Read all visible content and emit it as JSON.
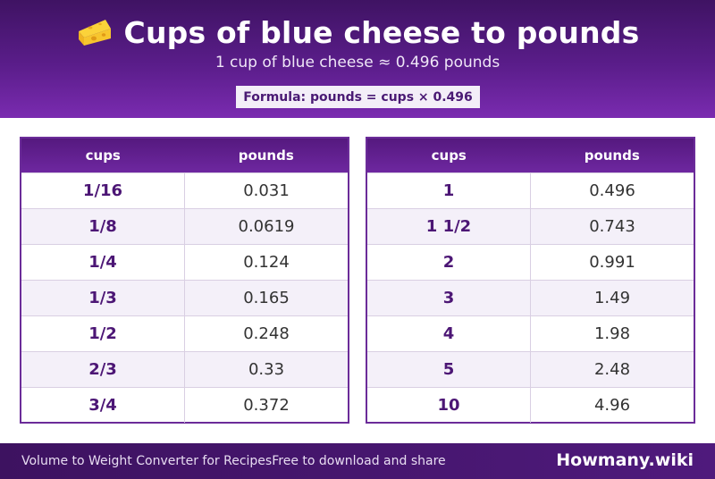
{
  "header": {
    "title": "Cups of blue cheese to pounds",
    "icon": "cheese-icon",
    "subtitle": "1 cup of blue cheese ≈ 0.496 pounds",
    "formula": "Formula: pounds = cups × 0.496"
  },
  "tables": [
    {
      "col1": "cups",
      "col2": "pounds",
      "rows": [
        {
          "cups": "1/16",
          "pounds": "0.031"
        },
        {
          "cups": "1/8",
          "pounds": "0.0619"
        },
        {
          "cups": "1/4",
          "pounds": "0.124"
        },
        {
          "cups": "1/3",
          "pounds": "0.165"
        },
        {
          "cups": "1/2",
          "pounds": "0.248"
        },
        {
          "cups": "2/3",
          "pounds": "0.33"
        },
        {
          "cups": "3/4",
          "pounds": "0.372"
        }
      ]
    },
    {
      "col1": "cups",
      "col2": "pounds",
      "rows": [
        {
          "cups": "1",
          "pounds": "0.496"
        },
        {
          "cups": "1 1/2",
          "pounds": "0.743"
        },
        {
          "cups": "2",
          "pounds": "0.991"
        },
        {
          "cups": "3",
          "pounds": "1.49"
        },
        {
          "cups": "4",
          "pounds": "1.98"
        },
        {
          "cups": "5",
          "pounds": "2.48"
        },
        {
          "cups": "10",
          "pounds": "4.96"
        }
      ]
    }
  ],
  "footer": {
    "left_text": "Volume to Weight Converter for Recipes",
    "left_text2": "Free to download and share",
    "brand": "Howmany.wiki"
  },
  "colors": {
    "header_purple": "#5a1d8a",
    "accent_purple": "#6b2c99",
    "cell_text_purple": "#4c1675"
  }
}
